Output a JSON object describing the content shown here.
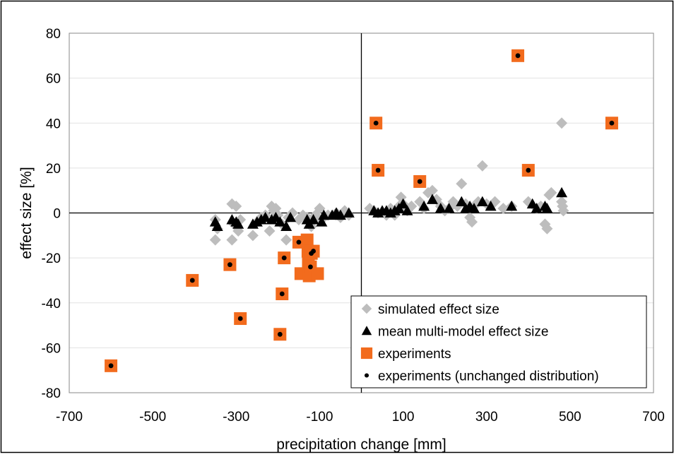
{
  "chart_data": {
    "type": "scatter",
    "title": "",
    "xlabel": "precipitation change [mm]",
    "ylabel": "effect size [%]",
    "xlim": [
      -700,
      700
    ],
    "ylim": [
      -80,
      80
    ],
    "xticks": [
      -700,
      -500,
      -300,
      -100,
      100,
      300,
      500,
      700
    ],
    "yticks": [
      -80,
      -60,
      -40,
      -20,
      0,
      20,
      40,
      60,
      80
    ],
    "grid": "horizontal",
    "legend_position": "bottom-right",
    "colors": {
      "simulated": "#bdbdbd",
      "mean": "#000000",
      "experiments": "#f26b1d",
      "unchanged": "#000000"
    },
    "series": [
      {
        "name": "simulated effect size",
        "marker": "diamond",
        "points": [
          [
            -350,
            -12
          ],
          [
            -350,
            -3
          ],
          [
            -345,
            -7
          ],
          [
            -310,
            4
          ],
          [
            -310,
            -12
          ],
          [
            -305,
            -5
          ],
          [
            -300,
            3
          ],
          [
            -295,
            -8
          ],
          [
            -290,
            -3
          ],
          [
            -260,
            -10
          ],
          [
            -250,
            -4
          ],
          [
            -240,
            -2
          ],
          [
            -230,
            -1
          ],
          [
            -220,
            -8
          ],
          [
            -215,
            3
          ],
          [
            -210,
            1
          ],
          [
            -205,
            2
          ],
          [
            -200,
            -1
          ],
          [
            -190,
            -5
          ],
          [
            -180,
            -12
          ],
          [
            -175,
            -2
          ],
          [
            -165,
            0
          ],
          [
            -150,
            -3
          ],
          [
            -140,
            -1
          ],
          [
            -130,
            -2
          ],
          [
            -120,
            -6
          ],
          [
            -110,
            -1
          ],
          [
            -100,
            2
          ],
          [
            -95,
            -3
          ],
          [
            -80,
            -1
          ],
          [
            -60,
            0
          ],
          [
            -50,
            -2
          ],
          [
            -40,
            1
          ],
          [
            -30,
            -1
          ],
          [
            20,
            2
          ],
          [
            30,
            1
          ],
          [
            40,
            0
          ],
          [
            60,
            -1
          ],
          [
            70,
            2
          ],
          [
            80,
            -1
          ],
          [
            90,
            3
          ],
          [
            95,
            7
          ],
          [
            100,
            4
          ],
          [
            110,
            1
          ],
          [
            120,
            3
          ],
          [
            140,
            5
          ],
          [
            150,
            2
          ],
          [
            160,
            9
          ],
          [
            170,
            10
          ],
          [
            180,
            6
          ],
          [
            190,
            3
          ],
          [
            200,
            1
          ],
          [
            210,
            2
          ],
          [
            220,
            5
          ],
          [
            230,
            3
          ],
          [
            240,
            13
          ],
          [
            250,
            4
          ],
          [
            260,
            -2
          ],
          [
            265,
            -4
          ],
          [
            270,
            3
          ],
          [
            280,
            5
          ],
          [
            290,
            21
          ],
          [
            300,
            4
          ],
          [
            320,
            5
          ],
          [
            340,
            2
          ],
          [
            360,
            3
          ],
          [
            400,
            5
          ],
          [
            420,
            2
          ],
          [
            430,
            3
          ],
          [
            440,
            -5
          ],
          [
            445,
            -7
          ],
          [
            450,
            8
          ],
          [
            455,
            9
          ],
          [
            480,
            40
          ],
          [
            480,
            5
          ],
          [
            482,
            3
          ],
          [
            484,
            1
          ]
        ]
      },
      {
        "name": "mean multi-model effect size",
        "marker": "triangle",
        "points": [
          [
            -350,
            -4
          ],
          [
            -345,
            -6
          ],
          [
            -310,
            -3
          ],
          [
            -300,
            -4
          ],
          [
            -295,
            -5
          ],
          [
            -260,
            -5
          ],
          [
            -250,
            -4
          ],
          [
            -240,
            -3
          ],
          [
            -230,
            -2
          ],
          [
            -215,
            -3
          ],
          [
            -205,
            -2
          ],
          [
            -195,
            -4
          ],
          [
            -180,
            -6
          ],
          [
            -170,
            -2
          ],
          [
            -130,
            -3
          ],
          [
            -125,
            -5
          ],
          [
            -115,
            -3
          ],
          [
            -95,
            -4
          ],
          [
            -90,
            -1
          ],
          [
            -70,
            -1
          ],
          [
            -60,
            0
          ],
          [
            -50,
            -1
          ],
          [
            -30,
            0
          ],
          [
            30,
            1
          ],
          [
            40,
            0
          ],
          [
            50,
            1
          ],
          [
            60,
            1
          ],
          [
            70,
            0
          ],
          [
            80,
            1
          ],
          [
            90,
            2
          ],
          [
            100,
            4
          ],
          [
            110,
            1
          ],
          [
            150,
            3
          ],
          [
            170,
            6
          ],
          [
            190,
            2
          ],
          [
            210,
            2
          ],
          [
            240,
            5
          ],
          [
            250,
            2
          ],
          [
            260,
            3
          ],
          [
            270,
            2
          ],
          [
            290,
            5
          ],
          [
            310,
            3
          ],
          [
            360,
            3
          ],
          [
            410,
            4
          ],
          [
            420,
            2
          ],
          [
            440,
            3
          ],
          [
            445,
            2
          ],
          [
            480,
            9
          ]
        ]
      },
      {
        "name": "experiments",
        "marker": "square",
        "points": [
          [
            -600,
            -68
          ],
          [
            -405,
            -30
          ],
          [
            -315,
            -23
          ],
          [
            -290,
            -47
          ],
          [
            -195,
            -54
          ],
          [
            -190,
            -36
          ],
          [
            -185,
            -20
          ],
          [
            -150,
            -13
          ],
          [
            -145,
            -27
          ],
          [
            -130,
            -12
          ],
          [
            -128,
            -17
          ],
          [
            -127,
            -22
          ],
          [
            -125,
            -28
          ],
          [
            -122,
            -24
          ],
          [
            -120,
            -18
          ],
          [
            -115,
            -17
          ],
          [
            -105,
            -27
          ],
          [
            35,
            40
          ],
          [
            40,
            19
          ],
          [
            140,
            14
          ],
          [
            375,
            70
          ],
          [
            400,
            19
          ],
          [
            600,
            40
          ]
        ]
      },
      {
        "name": "experiments (unchanged distribution)",
        "marker": "dot",
        "points": [
          [
            -600,
            -68
          ],
          [
            -405,
            -30
          ],
          [
            -315,
            -23
          ],
          [
            -290,
            -47
          ],
          [
            -195,
            -54
          ],
          [
            -190,
            -36
          ],
          [
            -185,
            -20
          ],
          [
            -150,
            -13
          ],
          [
            -122,
            -24
          ],
          [
            -120,
            -18
          ],
          [
            -115,
            -17
          ],
          [
            35,
            40
          ],
          [
            40,
            19
          ],
          [
            140,
            14
          ],
          [
            375,
            70
          ],
          [
            400,
            19
          ],
          [
            600,
            40
          ]
        ]
      }
    ]
  }
}
